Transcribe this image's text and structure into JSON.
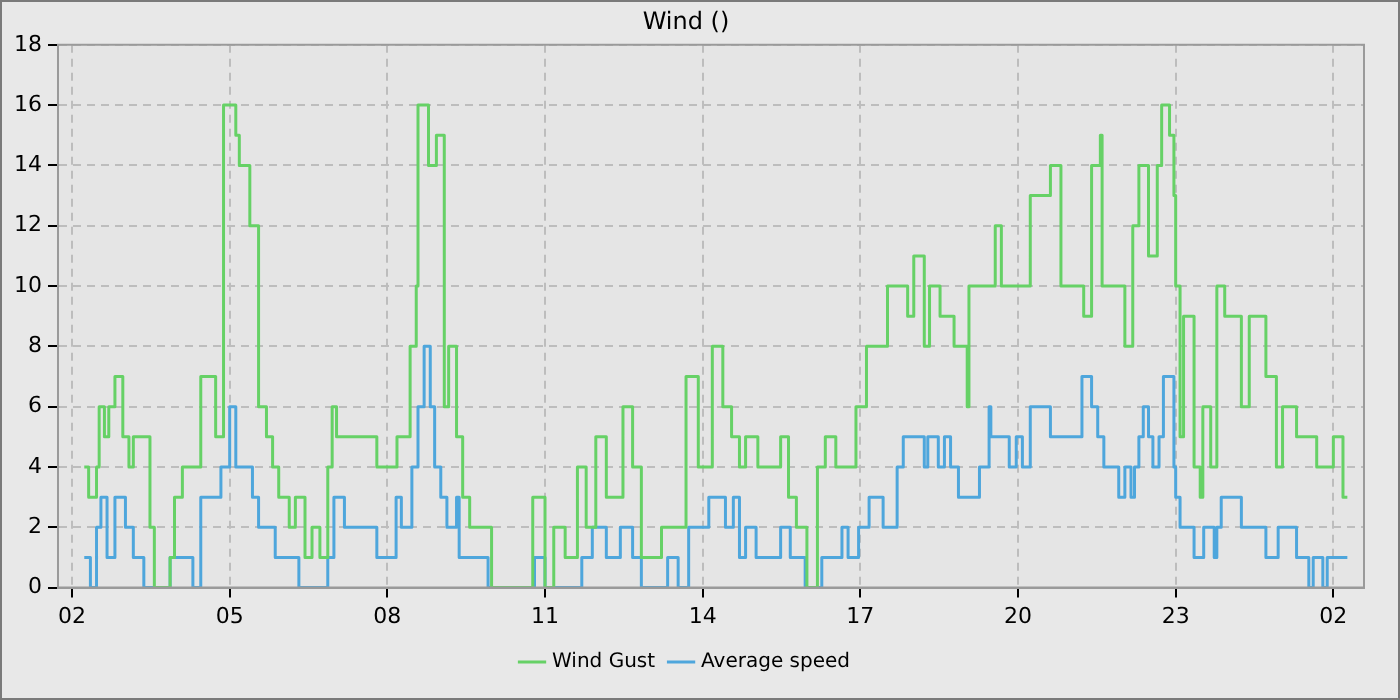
{
  "chart_data": {
    "type": "step",
    "title": "Wind ()",
    "xlim": [
      "--01-01T01:44",
      "--01-02T02:35"
    ],
    "xticks": [
      {
        "value": "--01-01T02:00",
        "label": "02"
      },
      {
        "value": "--01-01T05:00",
        "label": "05"
      },
      {
        "value": "--01-01T08:00",
        "label": "08"
      },
      {
        "value": "--01-01T11:00",
        "label": "11"
      },
      {
        "value": "--01-01T14:00",
        "label": "14"
      },
      {
        "value": "--01-01T17:00",
        "label": "17"
      },
      {
        "value": "--01-01T20:00",
        "label": "20"
      },
      {
        "value": "--01-01T23:00",
        "label": "23"
      },
      {
        "value": "--01-02T02:00",
        "label": "02"
      }
    ],
    "ylim": [
      0,
      18
    ],
    "yticks": [
      0,
      2,
      4,
      6,
      8,
      10,
      12,
      14,
      16,
      18
    ],
    "grid": true,
    "legend": "bottom",
    "series": [
      {
        "name": "Wind Gust",
        "color": "#66d166",
        "x": [
          "--01-01T02:14",
          "--01-01T02:19",
          "--01-01T02:28",
          "--01-01T02:31",
          "--01-01T02:37",
          "--01-01T02:42",
          "--01-01T02:49",
          "--01-01T02:58",
          "--01-01T03:05",
          "--01-01T03:10",
          "--01-01T03:29",
          "--01-01T03:34",
          "--01-01T03:52",
          "--01-01T03:57",
          "--01-01T04:06",
          "--01-01T04:27",
          "--01-01T04:44",
          "--01-01T04:53",
          "--01-01T05:07",
          "--01-01T05:11",
          "--01-01T05:23",
          "--01-01T05:33",
          "--01-01T05:42",
          "--01-01T05:49",
          "--01-01T05:56",
          "--01-01T06:08",
          "--01-01T06:15",
          "--01-01T06:26",
          "--01-01T06:34",
          "--01-01T06:43",
          "--01-01T06:52",
          "--01-01T06:57",
          "--01-01T07:02",
          "--01-01T07:48",
          "--01-01T08:11",
          "--01-01T08:26",
          "--01-01T08:33",
          "--01-01T08:35",
          "--01-01T08:47",
          "--01-01T08:56",
          "--01-01T09:05",
          "--01-01T09:10",
          "--01-01T09:19",
          "--01-01T09:26",
          "--01-01T09:34",
          "--01-01T09:59",
          "--01-01T10:46",
          "--01-01T11:00",
          "--01-01T11:10",
          "--01-01T11:23",
          "--01-01T11:37",
          "--01-01T11:47",
          "--01-01T11:58",
          "--01-01T12:10",
          "--01-01T12:29",
          "--01-01T12:40",
          "--01-01T12:50",
          "--01-01T13:13",
          "--01-01T13:41",
          "--01-01T13:55",
          "--01-01T14:11",
          "--01-01T14:23",
          "--01-01T14:33",
          "--01-01T14:42",
          "--01-01T14:49",
          "--01-01T15:03",
          "--01-01T15:29",
          "--01-01T15:38",
          "--01-01T15:47",
          "--01-01T15:59",
          "--01-01T16:11",
          "--01-01T16:20",
          "--01-01T16:32",
          "--01-01T16:55",
          "--01-01T17:07",
          "--01-01T17:31",
          "--01-01T17:54",
          "--01-01T18:01",
          "--01-01T18:13",
          "--01-01T18:19",
          "--01-01T18:31",
          "--01-01T18:47",
          "--01-01T19:02",
          "--01-01T19:04",
          "--01-01T19:34",
          "--01-01T19:41",
          "--01-01T20:14",
          "--01-01T20:37",
          "--01-01T20:49",
          "--01-01T21:15",
          "--01-01T21:24",
          "--01-01T21:34",
          "--01-01T21:36",
          "--01-01T22:02",
          "--01-01T22:11",
          "--01-01T22:18",
          "--01-01T22:29",
          "--01-01T22:39",
          "--01-01T22:44",
          "--01-01T22:53",
          "--01-01T22:58",
          "--01-01T23:00",
          "--01-01T23:05",
          "--01-01T23:09",
          "--01-01T23:21",
          "--01-01T23:28",
          "--01-01T23:31",
          "--01-01T23:40",
          "--01-01T23:47",
          "--01-01T23:56",
          "--01-02T00:15",
          "--01-02T00:24",
          "--01-02T00:43",
          "--01-02T00:55",
          "--01-02T01:02",
          "--01-02T01:18",
          "--01-02T01:41",
          "--01-02T02:00",
          "--01-02T02:11",
          "--01-02T02:16"
        ],
        "values": [
          4,
          3,
          4,
          6,
          5,
          6,
          7,
          5,
          4,
          5,
          2,
          0,
          1,
          3,
          4,
          7,
          5,
          16,
          15,
          14,
          12,
          6,
          5,
          4,
          3,
          2,
          3,
          1,
          2,
          1,
          4,
          6,
          5,
          4,
          5,
          8,
          10,
          16,
          14,
          15,
          6,
          8,
          5,
          3,
          2,
          0,
          3,
          0,
          2,
          1,
          4,
          2,
          5,
          3,
          6,
          4,
          1,
          2,
          7,
          4,
          8,
          6,
          5,
          4,
          5,
          4,
          5,
          3,
          2,
          0,
          4,
          5,
          4,
          6,
          8,
          10,
          9,
          11,
          8,
          10,
          9,
          8,
          6,
          10,
          12,
          10,
          13,
          14,
          10,
          9,
          14,
          15,
          10,
          8,
          12,
          14,
          11,
          14,
          16,
          15,
          13,
          10,
          5,
          9,
          4,
          3,
          6,
          4,
          10,
          9,
          6,
          9,
          7,
          4,
          6,
          5,
          4,
          5,
          3,
          3
        ]
      },
      {
        "name": "Average speed",
        "color": "#4ea6dc",
        "x": [
          "--01-01T02:14",
          "--01-01T02:21",
          "--01-01T02:28",
          "--01-01T02:33",
          "--01-01T02:40",
          "--01-01T02:49",
          "--01-01T03:01",
          "--01-01T03:10",
          "--01-01T03:22",
          "--01-01T03:52",
          "--01-01T04:18",
          "--01-01T04:27",
          "--01-01T04:50",
          "--01-01T05:00",
          "--01-01T05:07",
          "--01-01T05:26",
          "--01-01T05:33",
          "--01-01T05:52",
          "--01-01T06:19",
          "--01-01T06:52",
          "--01-01T06:59",
          "--01-01T07:11",
          "--01-01T07:48",
          "--01-01T08:10",
          "--01-01T08:16",
          "--01-01T08:28",
          "--01-01T08:35",
          "--01-01T08:42",
          "--01-01T08:49",
          "--01-01T08:54",
          "--01-01T09:01",
          "--01-01T09:08",
          "--01-01T09:19",
          "--01-01T09:22",
          "--01-01T09:55",
          "--01-01T10:48",
          "--01-01T11:00",
          "--01-01T11:42",
          "--01-01T11:54",
          "--01-01T12:10",
          "--01-01T12:26",
          "--01-01T12:40",
          "--01-01T12:50",
          "--01-01T13:20",
          "--01-01T13:32",
          "--01-01T13:44",
          "--01-01T14:07",
          "--01-01T14:26",
          "--01-01T14:35",
          "--01-01T14:42",
          "--01-01T14:49",
          "--01-01T15:01",
          "--01-01T15:29",
          "--01-01T15:40",
          "--01-01T15:57",
          "--01-01T16:16",
          "--01-01T16:39",
          "--01-01T16:46",
          "--01-01T16:58",
          "--01-01T17:10",
          "--01-01T17:26",
          "--01-01T17:42",
          "--01-01T17:49",
          "--01-01T18:01",
          "--01-01T18:13",
          "--01-01T18:17",
          "--01-01T18:29",
          "--01-01T18:36",
          "--01-01T18:43",
          "--01-01T18:52",
          "--01-01T19:16",
          "--01-01T19:27",
          "--01-01T19:29",
          "--01-01T19:50",
          "--01-01T19:58",
          "--01-01T20:05",
          "--01-01T20:14",
          "--01-01T20:37",
          "--01-01T21:13",
          "--01-01T21:24",
          "--01-01T21:31",
          "--01-01T21:38",
          "--01-01T21:55",
          "--01-01T22:02",
          "--01-01T22:09",
          "--01-01T22:13",
          "--01-01T22:18",
          "--01-01T22:23",
          "--01-01T22:29",
          "--01-01T22:34",
          "--01-01T22:41",
          "--01-01T22:46",
          "--01-01T22:58",
          "--01-01T23:00",
          "--01-01T23:05",
          "--01-01T23:21",
          "--01-01T23:32",
          "--01-01T23:44",
          "--01-01T23:47",
          "--01-01T23:52",
          "--01-02T00:15",
          "--01-02T00:43",
          "--01-02T00:57",
          "--01-02T01:18",
          "--01-02T01:32",
          "--01-02T01:37",
          "--01-02T01:48",
          "--01-02T01:53",
          "--01-02T02:16"
        ],
        "values": [
          1,
          0,
          2,
          3,
          1,
          3,
          2,
          1,
          0,
          1,
          0,
          3,
          4,
          6,
          4,
          3,
          2,
          1,
          0,
          1,
          3,
          2,
          1,
          3,
          2,
          4,
          6,
          8,
          6,
          4,
          3,
          2,
          3,
          1,
          0,
          1,
          0,
          1,
          2,
          1,
          2,
          1,
          0,
          1,
          0,
          2,
          3,
          2,
          3,
          1,
          2,
          1,
          2,
          1,
          0,
          1,
          2,
          1,
          2,
          3,
          2,
          4,
          5,
          5,
          4,
          5,
          4,
          5,
          4,
          3,
          4,
          6,
          5,
          4,
          5,
          4,
          6,
          5,
          7,
          6,
          5,
          4,
          3,
          4,
          3,
          4,
          5,
          6,
          5,
          4,
          5,
          7,
          4,
          3,
          2,
          1,
          2,
          1,
          2,
          3,
          2,
          1,
          2,
          1,
          0,
          1,
          0,
          1,
          1
        ]
      }
    ]
  }
}
